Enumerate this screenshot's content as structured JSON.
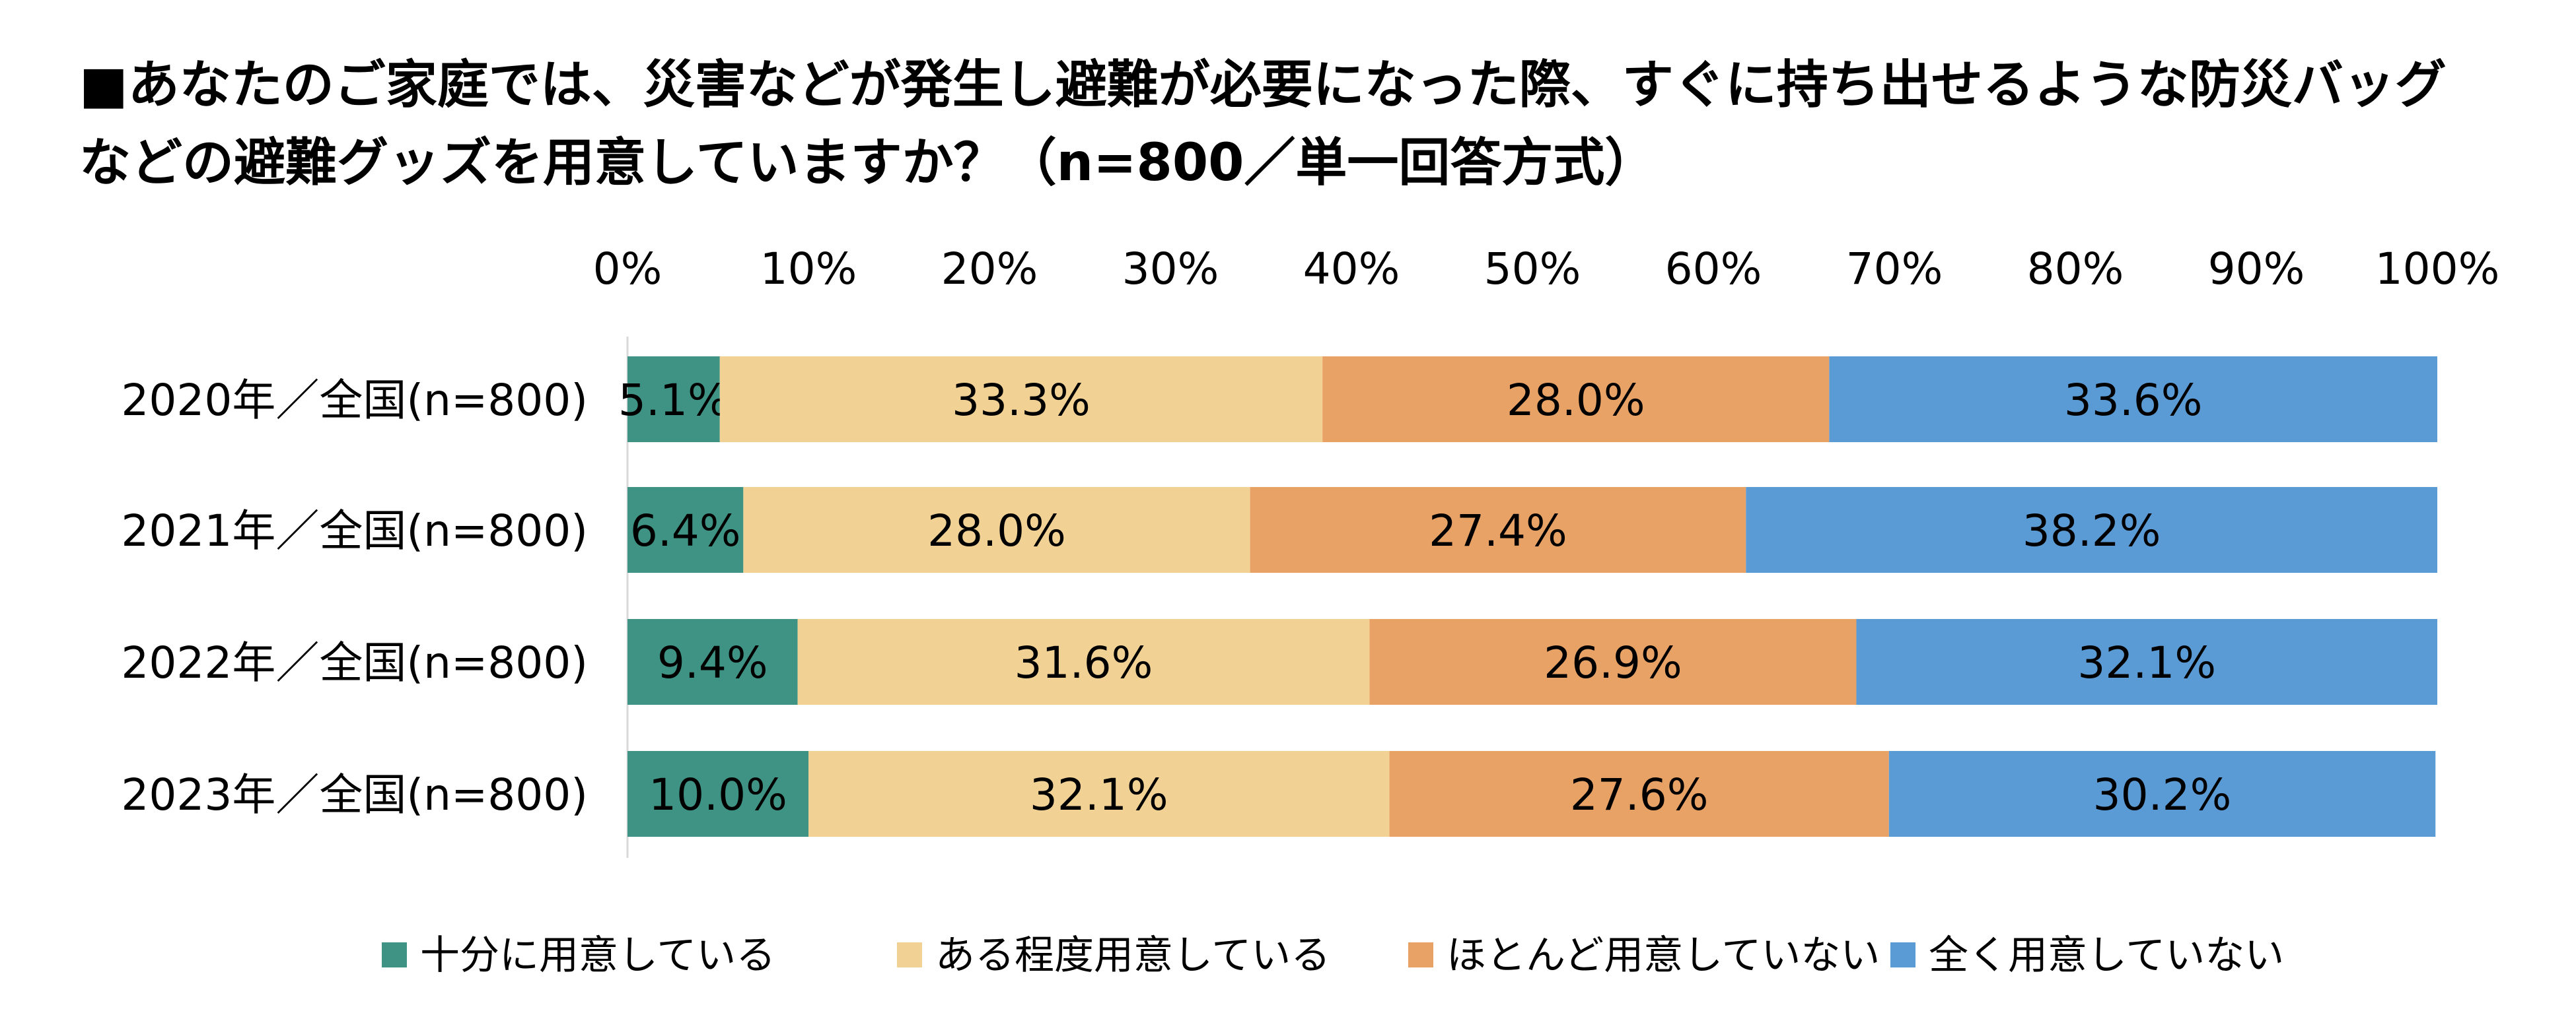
{
  "title_line1": "■あなたのご家庭では、災害などが発生し避難が必要になった際、すぐに持ち出せるような防災バッグ",
  "title_line2": "などの避難グッズを用意していますか？（n=800／単一回答方式）",
  "chart_data": {
    "type": "bar",
    "orientation": "horizontal",
    "stacked": true,
    "percent_stacked": true,
    "title": "■あなたのご家庭では、災害などが発生し避難が必要になった際、すぐに持ち出せるような防災バッグなどの避難グッズを用意していますか？（n=800／単一回答方式）",
    "categories": [
      "2020年／全国(n=800)",
      "2021年／全国(n=800)",
      "2022年／全国(n=800)",
      "2023年／全国(n=800)"
    ],
    "x_ticks": [
      "0%",
      "10%",
      "20%",
      "30%",
      "40%",
      "50%",
      "60%",
      "70%",
      "80%",
      "90%",
      "100%"
    ],
    "xlim": [
      0,
      100
    ],
    "xlabel": "",
    "ylabel": "",
    "axis_position": "top",
    "legend_position": "bottom",
    "series": [
      {
        "name": "十分に用意している",
        "color": "#3F9384",
        "values": [
          5.1,
          6.4,
          9.4,
          10.0
        ],
        "labels": [
          "5.1%",
          "6.4%",
          "9.4%",
          "10.0%"
        ]
      },
      {
        "name": "ある程度用意している",
        "color": "#F2D294",
        "values": [
          33.3,
          28.0,
          31.6,
          32.1
        ],
        "labels": [
          "33.3%",
          "28.0%",
          "31.6%",
          "32.1%"
        ]
      },
      {
        "name": "ほとんど用意していない",
        "color": "#E9A265",
        "values": [
          28.0,
          27.4,
          26.9,
          27.6
        ],
        "labels": [
          "28.0%",
          "27.4%",
          "26.9%",
          "27.6%"
        ]
      },
      {
        "name": "全く用意していない",
        "color": "#5B9BD5",
        "values": [
          33.6,
          38.2,
          32.1,
          30.2
        ],
        "labels": [
          "33.6%",
          "38.2%",
          "32.1%",
          "30.2%"
        ]
      }
    ]
  }
}
